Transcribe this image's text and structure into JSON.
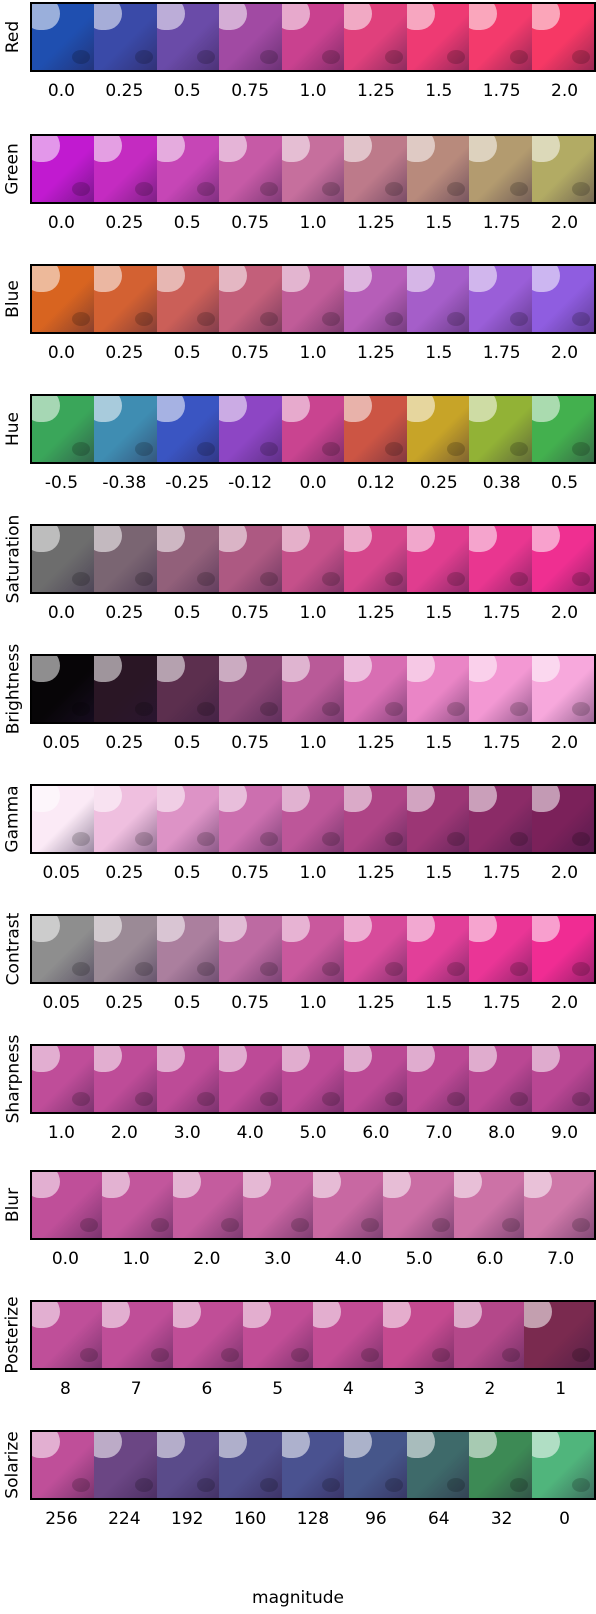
{
  "rows": [
    {
      "label": "Red",
      "ticks": [
        "0.0",
        "0.25",
        "0.5",
        "0.75",
        "1.0",
        "1.25",
        "1.5",
        "1.75",
        "2.0"
      ],
      "colors": [
        "#1f4fb0",
        "#3a4aa8",
        "#6a4ba8",
        "#a14aa3",
        "#c9418f",
        "#e0407c",
        "#ee3a73",
        "#f33a6c",
        "#f63865"
      ]
    },
    {
      "label": "Green",
      "ticks": [
        "0.0",
        "0.25",
        "0.5",
        "0.75",
        "1.0",
        "1.25",
        "1.5",
        "1.75",
        "2.0"
      ],
      "colors": [
        "#c11ad0",
        "#c42bc1",
        "#c646b6",
        "#c65aa6",
        "#c66f9d",
        "#bd7a8a",
        "#b88a7c",
        "#b39b6f",
        "#b2ab64"
      ]
    },
    {
      "label": "Blue",
      "ticks": [
        "0.0",
        "0.25",
        "0.5",
        "0.75",
        "1.0",
        "1.25",
        "1.5",
        "1.75",
        "2.0"
      ],
      "colors": [
        "#d86420",
        "#d36132",
        "#cb5f58",
        "#c35f7a",
        "#c05c98",
        "#b65eb8",
        "#a55ec9",
        "#9a5ed8",
        "#8f5de0"
      ]
    },
    {
      "label": "Hue",
      "ticks": [
        "-0.5",
        "-0.38",
        "-0.25",
        "-0.12",
        "0.0",
        "0.12",
        "0.25",
        "0.38",
        "0.5"
      ],
      "colors": [
        "#3aa65a",
        "#3f8db2",
        "#3a55c2",
        "#8d46c4",
        "#c94490",
        "#cc5544",
        "#c7a428",
        "#92b236",
        "#43b04e"
      ]
    },
    {
      "label": "Saturation",
      "ticks": [
        "0.0",
        "0.25",
        "0.5",
        "0.75",
        "1.0",
        "1.25",
        "1.5",
        "1.75",
        "2.0"
      ],
      "colors": [
        "#6d6d6d",
        "#7a6572",
        "#92607a",
        "#ad5982",
        "#c5508a",
        "#d5468c",
        "#e03d8f",
        "#e93690",
        "#ef2f91"
      ]
    },
    {
      "label": "Brightness",
      "ticks": [
        "0.05",
        "0.25",
        "0.5",
        "0.75",
        "1.0",
        "1.25",
        "1.5",
        "1.75",
        "2.0"
      ],
      "colors": [
        "#070507",
        "#2a1625",
        "#5c2f4e",
        "#8c4676",
        "#b95a98",
        "#d86eb3",
        "#ea85c6",
        "#f398d3",
        "#f7a8dc"
      ]
    },
    {
      "label": "Gamma",
      "ticks": [
        "0.05",
        "0.25",
        "0.5",
        "0.75",
        "1.0",
        "1.25",
        "1.5",
        "1.75",
        "2.0"
      ],
      "colors": [
        "#fbeaf6",
        "#efbfdf",
        "#dd93c6",
        "#cc6faf",
        "#bd5699",
        "#ae4486",
        "#9c3675",
        "#8b2b67",
        "#7b215a"
      ]
    },
    {
      "label": "Contrast",
      "ticks": [
        "0.05",
        "0.25",
        "0.5",
        "0.75",
        "1.0",
        "1.25",
        "1.5",
        "1.75",
        "2.0"
      ],
      "colors": [
        "#8e8e8e",
        "#9b8a96",
        "#ab7f9e",
        "#bd6aa2",
        "#c9589d",
        "#d74b9b",
        "#e23f99",
        "#ea3596",
        "#f02c93"
      ]
    },
    {
      "label": "Sharpness",
      "ticks": [
        "1.0",
        "2.0",
        "3.0",
        "4.0",
        "5.0",
        "6.0",
        "7.0",
        "8.0",
        "9.0"
      ],
      "colors": [
        "#bf4d99",
        "#be4c98",
        "#bd4b97",
        "#bd4a97",
        "#bc4996",
        "#bb4995",
        "#bb4894",
        "#ba4793",
        "#b94693"
      ]
    },
    {
      "label": "Blur",
      "ticks": [
        "0.0",
        "1.0",
        "2.0",
        "3.0",
        "4.0",
        "5.0",
        "6.0",
        "7.0"
      ],
      "colors": [
        "#bf4f99",
        "#c2569c",
        "#c45c9e",
        "#c662a0",
        "#c868a2",
        "#ca6da4",
        "#cc72a6",
        "#ce77a8"
      ]
    },
    {
      "label": "Posterize",
      "ticks": [
        "8",
        "7",
        "6",
        "5",
        "4",
        "3",
        "2",
        "1"
      ],
      "colors": [
        "#bf4f99",
        "#bf4e98",
        "#c04e97",
        "#c14d96",
        "#c24c94",
        "#c54a90",
        "#b4488a",
        "#7a2a4f"
      ]
    },
    {
      "label": "Solarize",
      "ticks": [
        "256",
        "224",
        "192",
        "160",
        "128",
        "96",
        "64",
        "32",
        "0"
      ],
      "colors": [
        "#bf4f99",
        "#6b4684",
        "#5a4b8a",
        "#4f4e8c",
        "#4a5290",
        "#46568a",
        "#3e6a6a",
        "#3d8a55",
        "#50b57c"
      ]
    }
  ],
  "xlabel": "magnitude"
}
